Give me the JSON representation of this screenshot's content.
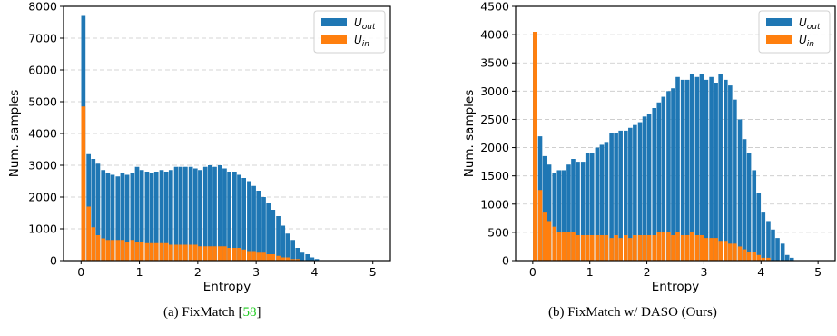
{
  "chart_data": [
    {
      "type": "bar",
      "stacked": "overlay",
      "xlabel": "Entropy",
      "ylabel": "Num. samples",
      "xlim": [
        -0.3,
        5.3
      ],
      "ylim": [
        0,
        8000
      ],
      "xticks": [
        0,
        1,
        2,
        3,
        4,
        5
      ],
      "yticks": [
        0,
        1000,
        2000,
        3000,
        4000,
        5000,
        6000,
        7000,
        8000
      ],
      "grid": "horizontal dashed",
      "legend_position": "top-right",
      "bin_width": 0.083,
      "x": [
        0.04,
        0.13,
        0.21,
        0.29,
        0.38,
        0.46,
        0.54,
        0.63,
        0.71,
        0.79,
        0.88,
        0.96,
        1.04,
        1.13,
        1.21,
        1.29,
        1.38,
        1.46,
        1.54,
        1.63,
        1.71,
        1.79,
        1.88,
        1.96,
        2.04,
        2.13,
        2.21,
        2.29,
        2.38,
        2.46,
        2.54,
        2.63,
        2.71,
        2.79,
        2.88,
        2.96,
        3.04,
        3.13,
        3.21,
        3.29,
        3.38,
        3.46,
        3.54,
        3.63,
        3.71,
        3.79,
        3.88,
        3.96,
        4.04,
        4.13,
        4.21,
        4.29,
        4.38,
        4.46,
        4.54,
        4.63,
        4.71
      ],
      "series": [
        {
          "name": "U_out",
          "color": "#1f77b4",
          "values": [
            7700,
            3350,
            3200,
            3050,
            2850,
            2750,
            2700,
            2650,
            2750,
            2700,
            2750,
            2950,
            2850,
            2800,
            2750,
            2800,
            2850,
            2800,
            2850,
            2950,
            2950,
            2950,
            2950,
            2900,
            2850,
            2950,
            3000,
            2950,
            3000,
            2900,
            2800,
            2800,
            2700,
            2600,
            2500,
            2350,
            2200,
            2000,
            1800,
            1600,
            1400,
            1100,
            850,
            650,
            400,
            250,
            200,
            100,
            50,
            0,
            0,
            0,
            0,
            0,
            0,
            0,
            0
          ]
        },
        {
          "name": "U_in",
          "color": "#ff7f0e",
          "values": [
            4850,
            1700,
            1050,
            800,
            700,
            650,
            650,
            650,
            650,
            600,
            650,
            600,
            600,
            550,
            550,
            550,
            550,
            550,
            500,
            500,
            500,
            500,
            500,
            500,
            450,
            450,
            450,
            450,
            450,
            450,
            400,
            400,
            400,
            350,
            300,
            300,
            250,
            250,
            200,
            200,
            150,
            100,
            100,
            50,
            50,
            0,
            0,
            0,
            0,
            0,
            0,
            0,
            0,
            0,
            0,
            0,
            0
          ]
        }
      ]
    },
    {
      "type": "bar",
      "stacked": "overlay",
      "xlabel": "Entropy",
      "ylabel": "Num. samples",
      "xlim": [
        -0.3,
        5.3
      ],
      "ylim": [
        0,
        4500
      ],
      "xticks": [
        0,
        1,
        2,
        3,
        4,
        5
      ],
      "yticks": [
        0,
        500,
        1000,
        1500,
        2000,
        2500,
        3000,
        3500,
        4000,
        4500
      ],
      "grid": "horizontal dashed",
      "legend_position": "top-right",
      "bin_width": 0.083,
      "x": [
        0.04,
        0.13,
        0.21,
        0.29,
        0.38,
        0.46,
        0.54,
        0.63,
        0.71,
        0.79,
        0.88,
        0.96,
        1.04,
        1.13,
        1.21,
        1.29,
        1.38,
        1.46,
        1.54,
        1.63,
        1.71,
        1.79,
        1.88,
        1.96,
        2.04,
        2.13,
        2.21,
        2.29,
        2.38,
        2.46,
        2.54,
        2.63,
        2.71,
        2.79,
        2.88,
        2.96,
        3.04,
        3.13,
        3.21,
        3.29,
        3.38,
        3.46,
        3.54,
        3.63,
        3.71,
        3.79,
        3.88,
        3.96,
        4.04,
        4.13,
        4.21,
        4.29,
        4.38,
        4.46,
        4.54,
        4.63,
        4.71
      ],
      "series": [
        {
          "name": "U_out",
          "color": "#1f77b4",
          "values": [
            4050,
            2200,
            1850,
            1700,
            1550,
            1600,
            1600,
            1700,
            1800,
            1750,
            1750,
            1900,
            1900,
            2000,
            2050,
            2100,
            2250,
            2250,
            2300,
            2300,
            2350,
            2400,
            2450,
            2550,
            2600,
            2700,
            2800,
            2900,
            3000,
            3050,
            3250,
            3200,
            3200,
            3300,
            3250,
            3300,
            3200,
            3250,
            3150,
            3300,
            3200,
            3100,
            2850,
            2500,
            2150,
            1900,
            1600,
            1200,
            850,
            700,
            550,
            400,
            300,
            100,
            50,
            0,
            0
          ]
        },
        {
          "name": "U_in",
          "color": "#ff7f0e",
          "values": [
            4050,
            1250,
            850,
            700,
            600,
            500,
            500,
            500,
            500,
            450,
            450,
            450,
            450,
            450,
            450,
            450,
            400,
            450,
            400,
            450,
            400,
            450,
            450,
            450,
            450,
            450,
            500,
            500,
            500,
            450,
            500,
            450,
            450,
            500,
            450,
            450,
            400,
            400,
            400,
            350,
            350,
            300,
            300,
            250,
            200,
            150,
            150,
            100,
            50,
            50,
            0,
            0,
            0,
            0,
            0,
            0,
            0
          ]
        }
      ]
    }
  ],
  "captions": {
    "a_text": "(a) FixMatch [",
    "a_cite": "58",
    "a_close": "]",
    "b_text": "(b) FixMatch w/ DASO (Ours)"
  }
}
